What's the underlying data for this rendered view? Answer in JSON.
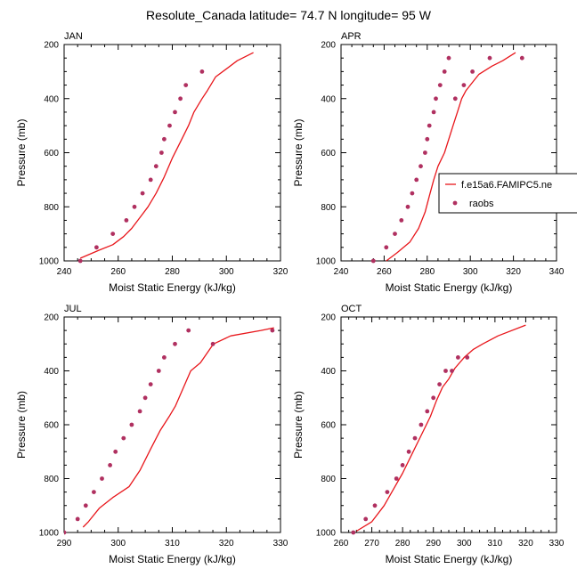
{
  "figure_title": "Resolute_Canada  latitude= 74.7 N longitude= 95 W",
  "legend": {
    "model": "f.e15a6.FAMIPC5.ne",
    "obs": "raobs"
  },
  "colors": {
    "model": "#e8161b",
    "obs": "#b03060"
  },
  "chart_data": [
    {
      "type": "line",
      "title": "JAN",
      "xlabel": "Moist Static Energy (kJ/kg)",
      "ylabel": "Pressure (mb)",
      "xlim": [
        240,
        320
      ],
      "ylim": [
        1000,
        200
      ],
      "xticks": [
        240,
        260,
        280,
        300,
        320
      ],
      "yticks": [
        200,
        400,
        600,
        800,
        1000
      ],
      "series": [
        {
          "name": "f.e15a6.FAMIPC5.ne",
          "style": "line",
          "x": [
            246,
            253,
            258,
            262,
            265,
            268,
            271,
            274,
            277,
            280,
            283,
            286,
            288,
            291,
            293,
            296,
            300,
            304,
            310
          ],
          "y": [
            990,
            960,
            940,
            910,
            880,
            840,
            800,
            750,
            690,
            620,
            560,
            500,
            450,
            400,
            370,
            320,
            290,
            260,
            230
          ]
        },
        {
          "name": "raobs",
          "style": "marker",
          "x": [
            246,
            252,
            258,
            263,
            266,
            269,
            272,
            274,
            276,
            277,
            279,
            281,
            283,
            285,
            291
          ],
          "y": [
            1000,
            950,
            900,
            850,
            800,
            750,
            700,
            650,
            600,
            550,
            500,
            450,
            400,
            350,
            300
          ]
        }
      ]
    },
    {
      "type": "line",
      "title": "APR",
      "xlabel": "Moist Static Energy (kJ/kg)",
      "ylabel": "Pressure (mb)",
      "xlim": [
        240,
        340
      ],
      "ylim": [
        1000,
        200
      ],
      "xticks": [
        240,
        260,
        280,
        300,
        320,
        340
      ],
      "yticks": [
        200,
        400,
        600,
        800,
        1000
      ],
      "series": [
        {
          "name": "f.e15a6.FAMIPC5.ne",
          "style": "line",
          "x": [
            261,
            266,
            272,
            276,
            279,
            281,
            283,
            285,
            288,
            290,
            292,
            294,
            296,
            298,
            301,
            304,
            310,
            315,
            321
          ],
          "y": [
            1000,
            970,
            930,
            880,
            820,
            760,
            700,
            650,
            600,
            550,
            500,
            450,
            400,
            370,
            340,
            310,
            280,
            260,
            230
          ]
        },
        {
          "name": "raobs",
          "style": "marker",
          "x": [
            255,
            261,
            265,
            268,
            271,
            273,
            275,
            277,
            279,
            280,
            281,
            283,
            284,
            286,
            288,
            290,
            293,
            297,
            301,
            309,
            324
          ],
          "y": [
            1000,
            950,
            900,
            850,
            800,
            750,
            700,
            650,
            600,
            550,
            500,
            450,
            400,
            350,
            300,
            250,
            400,
            350,
            300,
            250,
            250
          ]
        }
      ]
    },
    {
      "type": "line",
      "title": "JUL",
      "xlabel": "Moist Static Energy (kJ/kg)",
      "ylabel": "Pressure (mb)",
      "xlim": [
        290,
        330
      ],
      "ylim": [
        1000,
        200
      ],
      "xticks": [
        290,
        300,
        310,
        320,
        330
      ],
      "yticks": [
        200,
        400,
        600,
        800,
        1000
      ],
      "series": [
        {
          "name": "f.e15a6.FAMIPC5.ne",
          "style": "line",
          "x": [
            293.5,
            294.5,
            296.5,
            299,
            302,
            304,
            306,
            307.8,
            309.4,
            310.6,
            312.1,
            313.4,
            315.2,
            317.6,
            320.8,
            326.4,
            328.8
          ],
          "y": [
            980,
            960,
            910,
            870,
            830,
            770,
            690,
            620,
            570,
            530,
            460,
            400,
            370,
            300,
            270,
            250,
            240
          ]
        },
        {
          "name": "raobs",
          "style": "marker",
          "x": [
            290,
            292.5,
            294,
            295.5,
            297,
            298.5,
            299.5,
            301,
            302.5,
            304,
            305,
            306,
            307.5,
            308.5,
            310.5,
            313,
            317.5,
            328.5
          ],
          "y": [
            1000,
            950,
            900,
            850,
            800,
            750,
            700,
            650,
            600,
            550,
            500,
            450,
            400,
            350,
            300,
            250,
            300,
            250
          ]
        }
      ]
    },
    {
      "type": "line",
      "title": "OCT",
      "xlabel": "Moist Static Energy (kJ/kg)",
      "ylabel": "Pressure (mb)",
      "xlim": [
        260,
        330
      ],
      "ylim": [
        1000,
        200
      ],
      "xticks": [
        260,
        270,
        280,
        290,
        300,
        310,
        320,
        330
      ],
      "yticks": [
        200,
        400,
        600,
        800,
        1000
      ],
      "series": [
        {
          "name": "f.e15a6.FAMIPC5.ne",
          "style": "line",
          "x": [
            265,
            270,
            274,
            277,
            280,
            283,
            286,
            289,
            291,
            293,
            295,
            297,
            300,
            303,
            306,
            311,
            320
          ],
          "y": [
            995,
            960,
            900,
            840,
            780,
            710,
            640,
            570,
            510,
            460,
            430,
            390,
            350,
            320,
            300,
            270,
            230
          ]
        },
        {
          "name": "raobs",
          "style": "marker",
          "x": [
            264,
            268,
            271,
            275,
            278,
            280,
            282,
            284,
            286,
            288,
            290,
            292,
            294,
            296,
            298,
            301
          ],
          "y": [
            1000,
            950,
            900,
            850,
            800,
            750,
            700,
            650,
            600,
            550,
            500,
            450,
            400,
            400,
            350,
            350
          ]
        }
      ]
    }
  ]
}
